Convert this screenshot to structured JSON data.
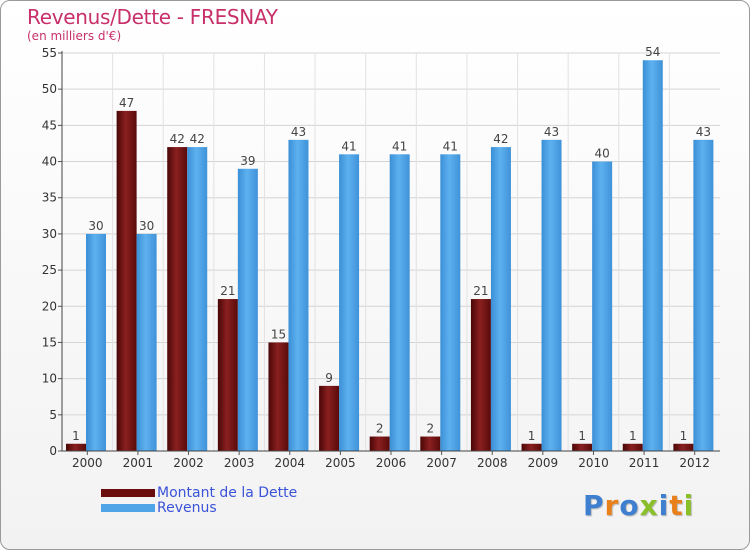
{
  "header": {
    "title": "Revenus/Dette - FRESNAY",
    "subtitle": "(en milliers d'€)"
  },
  "legend": {
    "items": [
      {
        "label": "Montant de la Dette",
        "color": "#6b0d0d"
      },
      {
        "label": "Revenus",
        "color": "#4ea4e6"
      }
    ]
  },
  "logo": {
    "text": "Proxiti",
    "letters": [
      {
        "char": "P",
        "color": "#3f7fd0"
      },
      {
        "char": "r",
        "color": "#e8811c"
      },
      {
        "char": "o",
        "color": "#3f7fd0"
      },
      {
        "char": "x",
        "color": "#8abf2a"
      },
      {
        "char": "i",
        "color": "#3f7fd0"
      },
      {
        "char": "t",
        "color": "#e8811c"
      },
      {
        "char": "i",
        "color": "#8abf2a"
      }
    ]
  },
  "chart_data": {
    "type": "bar",
    "title": "Revenus/Dette - FRESNAY",
    "subtitle": "(en milliers d'€)",
    "xlabel": "",
    "ylabel": "",
    "categories": [
      "2000",
      "2001",
      "2002",
      "2003",
      "2004",
      "2005",
      "2006",
      "2007",
      "2008",
      "2009",
      "2010",
      "2011",
      "2012"
    ],
    "ylim": [
      0,
      55
    ],
    "yticks": [
      0,
      5,
      10,
      15,
      20,
      25,
      30,
      35,
      40,
      45,
      50,
      55
    ],
    "grid": true,
    "legend_position": "bottom-left",
    "series": [
      {
        "name": "Montant de la Dette",
        "color": "#6b0d0d",
        "values": [
          1,
          47,
          42,
          21,
          15,
          9,
          2,
          2,
          21,
          1,
          1,
          1,
          1
        ]
      },
      {
        "name": "Revenus",
        "color": "#4ea4e6",
        "values": [
          30,
          30,
          42,
          39,
          43,
          41,
          41,
          41,
          42,
          43,
          40,
          54,
          43
        ]
      }
    ]
  }
}
